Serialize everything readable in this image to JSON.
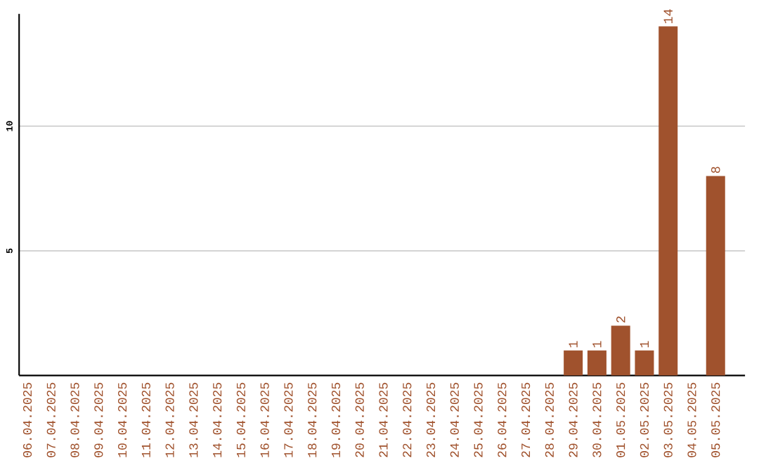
{
  "chart_data": {
    "type": "bar",
    "categories": [
      "06.04.2025",
      "07.04.2025",
      "08.04.2025",
      "09.04.2025",
      "10.04.2025",
      "11.04.2025",
      "12.04.2025",
      "13.04.2025",
      "14.04.2025",
      "15.04.2025",
      "16.04.2025",
      "17.04.2025",
      "18.04.2025",
      "19.04.2025",
      "20.04.2025",
      "21.04.2025",
      "22.04.2025",
      "23.04.2025",
      "24.04.2025",
      "25.04.2025",
      "26.04.2025",
      "27.04.2025",
      "28.04.2025",
      "29.04.2025",
      "30.04.2025",
      "01.05.2025",
      "02.05.2025",
      "03.05.2025",
      "04.05.2025",
      "05.05.2025"
    ],
    "values": [
      0,
      0,
      0,
      0,
      0,
      0,
      0,
      0,
      0,
      0,
      0,
      0,
      0,
      0,
      0,
      0,
      0,
      0,
      0,
      0,
      0,
      0,
      0,
      1,
      1,
      2,
      1,
      14,
      0,
      8
    ],
    "value_labels": [
      null,
      null,
      null,
      null,
      null,
      null,
      null,
      null,
      null,
      null,
      null,
      null,
      null,
      null,
      null,
      null,
      null,
      null,
      null,
      null,
      null,
      null,
      null,
      "1",
      "1",
      "2",
      "1",
      "14",
      null,
      "8"
    ],
    "color": "#a0522d",
    "ylim": [
      0,
      14.5
    ],
    "yticks": [
      5,
      10
    ],
    "grid": "y"
  }
}
